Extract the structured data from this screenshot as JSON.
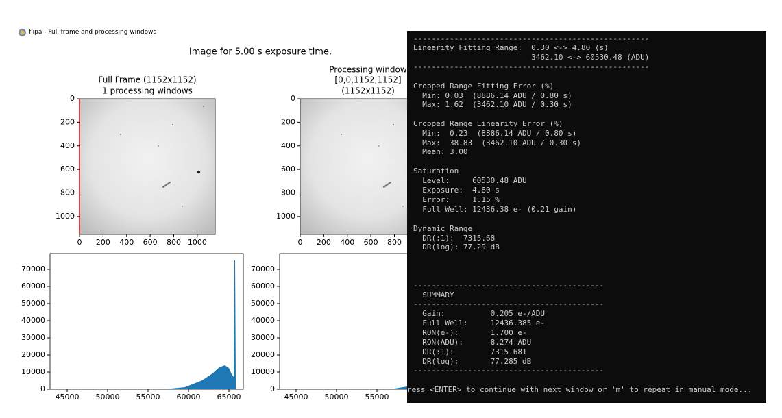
{
  "window": {
    "title": "flipa - Full frame and processing windows"
  },
  "figure": {
    "suptitle": "Image for 5.00 s exposure time.",
    "image_panels": [
      {
        "title": [
          "Full Frame (1152x1152)",
          "1 processing windows"
        ],
        "xticks": [
          0,
          200,
          400,
          600,
          800,
          1000
        ],
        "yticks": [
          0,
          200,
          400,
          600,
          800,
          1000
        ]
      },
      {
        "title": [
          "Processing window",
          "[0,0,1152,1152]",
          "(1152x1152)"
        ],
        "xticks": [
          0,
          200,
          400,
          600,
          800
        ],
        "yticks": [
          0,
          200,
          400,
          600,
          800,
          1000
        ]
      }
    ],
    "histograms": [
      {
        "xticks": [
          45000,
          50000,
          55000,
          60000,
          65000
        ],
        "yticks": [
          0,
          10000,
          20000,
          30000,
          40000,
          50000,
          60000,
          70000
        ]
      },
      {
        "xticks": [
          45000,
          50000,
          55000
        ],
        "yticks": [
          0,
          10000,
          20000,
          30000,
          40000,
          50000,
          60000,
          70000
        ]
      }
    ]
  },
  "terminal": {
    "lines": [
      "----------------------------------------------------",
      "Linearity Fitting Range:  0.30 <-> 4.80 (s)",
      "                          3462.10 <-> 60530.48 (ADU)",
      "----------------------------------------------------",
      "Cropped Range Fitting Error (%)",
      "  Min: 0.03  (8886.14 ADU / 0.80 s)",
      "  Max: 1.62  (3462.10 ADU / 0.30 s)",
      "Cropped Range Linearity Error (%)",
      "  Min:  0.23  (8886.14 ADU / 0.80 s)",
      "  Max:  38.83  (3462.10 ADU / 0.30 s)",
      "  Mean: 3.00",
      "Saturation",
      "  Level:     60530.48 ADU",
      "  Exposure:  4.80 s",
      "  Error:     1.15 %",
      "  Full Well: 12436.38 e- (0.21 gain)",
      "Dynamic Range",
      "  DR(:1):  7315.68",
      "  DR(log): 77.29 dB",
      "------------------------------------------",
      "  SUMMARY",
      "------------------------------------------",
      "  Gain:          0.205 e-/ADU",
      "  Full Well:     12436.385 e-",
      "  RON(e-):       1.700 e-",
      "  RON(ADU):      8.274 ADU",
      "  DR(:1):        7315.681",
      "  DR(log):       77.285 dB",
      "------------------------------------------",
      "ress <ENTER> to continue with next window or 'm' to repeat in manual mode..."
    ]
  }
}
